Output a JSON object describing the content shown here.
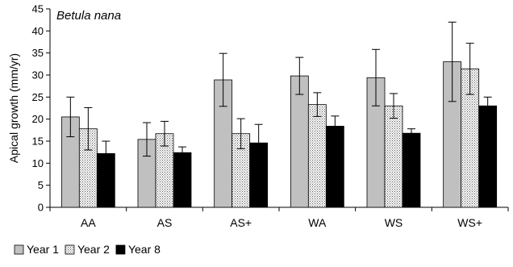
{
  "chart_data": {
    "type": "bar",
    "title": "Betula nana",
    "xlabel": "",
    "ylabel": "Apical growth (mm/yr)",
    "ylim": [
      0,
      45
    ],
    "yticks": [
      0,
      5,
      10,
      15,
      20,
      25,
      30,
      35,
      40,
      45
    ],
    "categories": [
      "AA",
      "AS",
      "AS+",
      "WA",
      "WS",
      "WS+"
    ],
    "series": [
      {
        "name": "Year 1",
        "color": "#c0c0c0",
        "pattern": "solid-grey",
        "values": [
          20.5,
          15.4,
          28.9,
          29.8,
          29.4,
          33.0
        ],
        "error": [
          4.5,
          3.8,
          6.0,
          4.2,
          6.4,
          9.0
        ]
      },
      {
        "name": "Year 2",
        "color": "#ffffff",
        "pattern": "dotted",
        "values": [
          17.8,
          16.7,
          16.7,
          23.3,
          23.0,
          31.4
        ],
        "error": [
          4.8,
          2.8,
          3.4,
          2.7,
          2.8,
          5.8
        ]
      },
      {
        "name": "Year 8",
        "color": "#000000",
        "pattern": "solid-black",
        "values": [
          12.2,
          12.4,
          14.6,
          18.4,
          16.8,
          23.0
        ],
        "error": [
          2.8,
          1.3,
          4.2,
          2.3,
          1.0,
          2.0
        ]
      }
    ],
    "legend_position": "bottom-left",
    "grid": false
  }
}
